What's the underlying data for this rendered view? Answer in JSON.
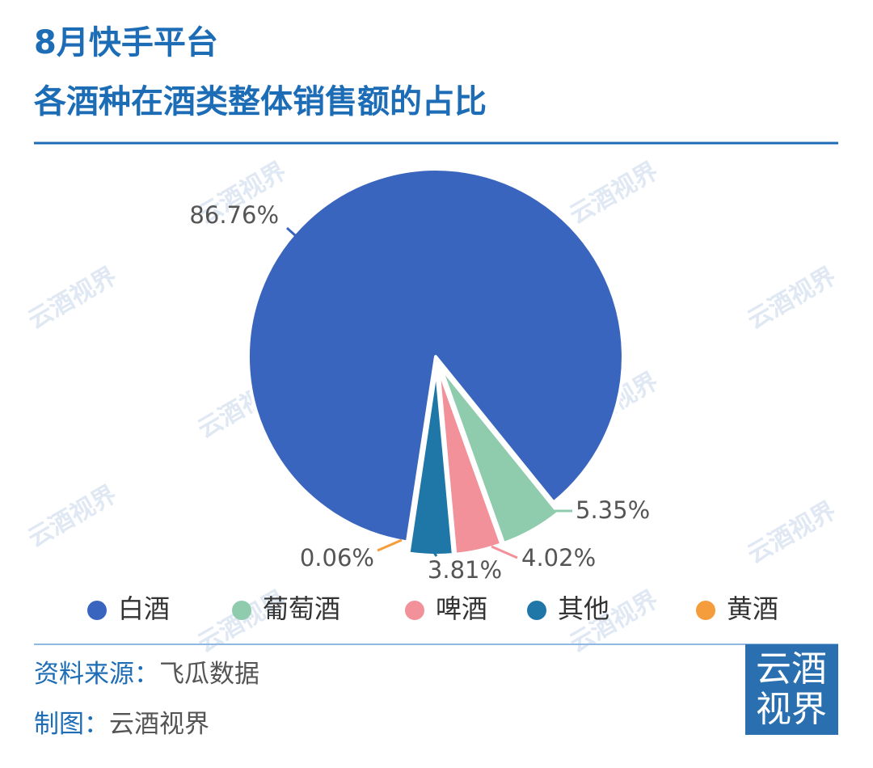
{
  "chart_data": {
    "type": "pie",
    "title": [
      "8月快手平台",
      "各酒种在酒类整体销售额的占比"
    ],
    "categories": [
      "白酒",
      "葡萄酒",
      "啤酒",
      "其他",
      "黄酒"
    ],
    "values": [
      86.76,
      5.35,
      4.02,
      3.81,
      0.06
    ],
    "value_labels": [
      "86.76%",
      "5.35%",
      "4.02%",
      "3.81%",
      "0.06%"
    ],
    "colors": [
      "#3a65be",
      "#8fcbad",
      "#f2919a",
      "#1f77a8",
      "#f59c3c"
    ],
    "legend": "bottom"
  },
  "watermark": "云酒视界",
  "footer": {
    "source_label": "资料来源：",
    "source": "飞瓜数据",
    "credit_label": "制图：",
    "credit": "云酒视界"
  },
  "logo": [
    "云酒",
    "视界"
  ]
}
